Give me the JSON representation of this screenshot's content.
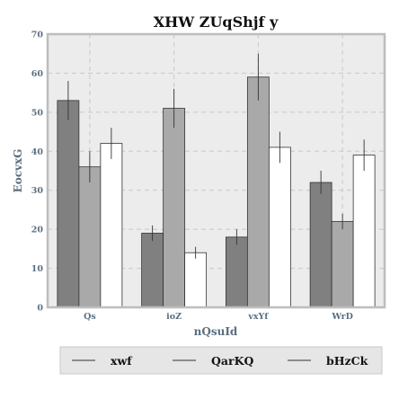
{
  "chart_data": {
    "type": "bar",
    "title": "XHW ZUqShjf y",
    "xlabel": "nQsuId",
    "ylabel": "EocvxG",
    "categories": [
      "Qs",
      "ioZ",
      "vxYf",
      "WrD"
    ],
    "ylim": [
      0,
      70
    ],
    "yticks": [
      0,
      10,
      20,
      30,
      40,
      50,
      60,
      70
    ],
    "grid": true,
    "legend_position": "bottom",
    "series": [
      {
        "name": "xwf",
        "values": [
          53,
          19,
          18,
          32
        ],
        "errors": [
          5,
          2,
          2,
          3
        ],
        "color": "#808080"
      },
      {
        "name": "QarKQ",
        "values": [
          36,
          51,
          59,
          22
        ],
        "errors": [
          4,
          5,
          6,
          2
        ],
        "color": "#a9a9a9"
      },
      {
        "name": "bHzCk",
        "values": [
          42,
          14,
          41,
          39
        ],
        "errors": [
          4,
          1.5,
          4,
          4
        ],
        "color": "#ffffff"
      }
    ]
  },
  "colors": {
    "plot_background": "#ececec",
    "frame": "#bdbdbd",
    "grid": "#c8c8c8",
    "legend_background": "#e6e6e6"
  }
}
